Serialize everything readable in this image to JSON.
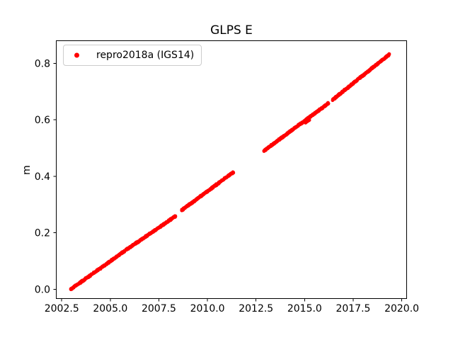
{
  "figure": {
    "background": "#ffffff",
    "text_color": "#000000",
    "spine_color": "#000000"
  },
  "chart_data": {
    "type": "scatter",
    "title": "GLPS E",
    "xlabel": "",
    "ylabel": "m",
    "grid": false,
    "xlim": [
      2002.2,
      2020.27
    ],
    "ylim": [
      -0.034,
      0.879
    ],
    "xticks": {
      "values": [
        2002.5,
        2005.0,
        2007.5,
        2010.0,
        2012.5,
        2015.0,
        2017.5,
        2020.0
      ],
      "labels": [
        "2002.5",
        "2005.0",
        "2007.5",
        "2010.0",
        "2012.5",
        "2015.0",
        "2017.5",
        "2020.0"
      ]
    },
    "yticks": {
      "values": [
        0.0,
        0.2,
        0.4,
        0.6,
        0.8
      ],
      "labels": [
        "0.0",
        "0.2",
        "0.4",
        "0.6",
        "0.8"
      ]
    },
    "legend": [
      {
        "label": "repro2018a (IGS14)",
        "marker": "dot",
        "marker_color": "#ff0000",
        "border_color": "#cccccc",
        "position": "upper left"
      }
    ],
    "series": [
      {
        "name": "repro2018a (IGS14)",
        "color": "#ff0000",
        "marker": "dot",
        "marker_radius_px": 2.3,
        "segments": [
          {
            "x_start": 2002.96,
            "x_end": 2005.73,
            "y_start": 0.0,
            "y_end": 0.135,
            "step": 0.008,
            "jitter": 0.0035
          },
          {
            "x_start": 2005.8,
            "x_end": 2008.36,
            "y_start": 0.139,
            "y_end": 0.259,
            "step": 0.008,
            "jitter": 0.0035
          },
          {
            "x_start": 2008.67,
            "x_end": 2011.34,
            "y_start": 0.28,
            "y_end": 0.415,
            "step": 0.008,
            "jitter": 0.0035
          },
          {
            "x_start": 2012.9,
            "x_end": 2016.23,
            "y_start": 0.49,
            "y_end": 0.659,
            "step": 0.008,
            "jitter": 0.0035
          },
          {
            "x_start": 2015.05,
            "x_end": 2015.25,
            "y_start": 0.59,
            "y_end": 0.6,
            "step": 0.012,
            "jitter": 0.002
          },
          {
            "x_start": 2016.44,
            "x_end": 2019.36,
            "y_start": 0.671,
            "y_end": 0.832,
            "step": 0.008,
            "jitter": 0.0035
          }
        ]
      }
    ]
  }
}
